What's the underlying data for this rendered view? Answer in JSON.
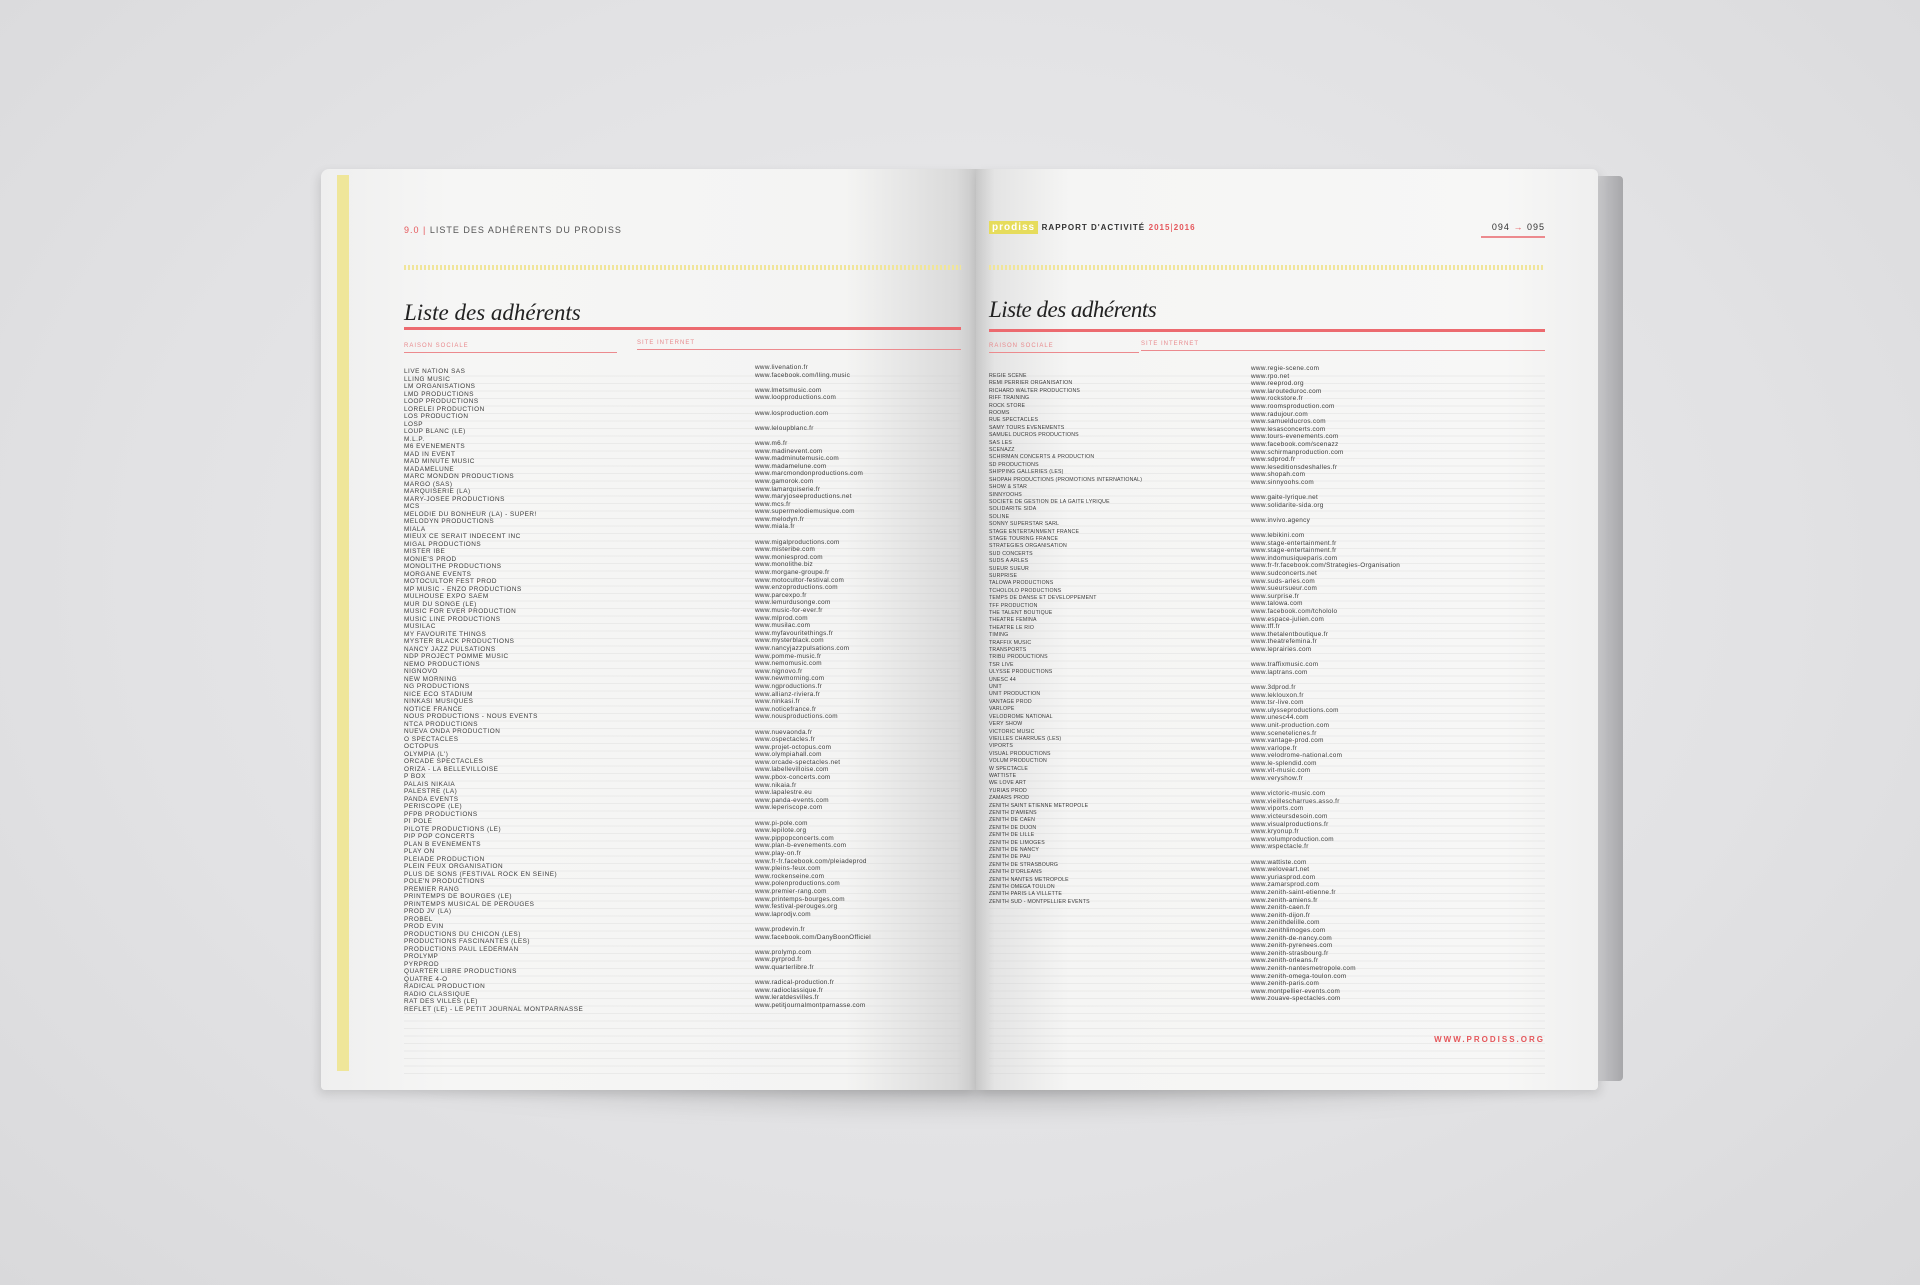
{
  "left_page": {
    "section_number": "9.0",
    "section_title": "LISTE DES ADHÉRENTS DU PRODISS",
    "heading": "Liste des adhérents",
    "columns": [
      "RAISON SOCIALE",
      "SITE INTERNET"
    ],
    "names": [
      "LIVE NATION SAS",
      "LLING MUSIC",
      "LM ORGANISATIONS",
      "LMD PRODUCTIONS",
      "LOOP PRODUCTIONS",
      "LORELEI PRODUCTION",
      "LOS PRODUCTION",
      "LOSP",
      "LOUP BLANC (LE)",
      "M.L.P.",
      "M6 EVENEMENTS",
      "MAD IN EVENT",
      "MAD MINUTE MUSIC",
      "MADAMELUNE",
      "MARC MONDON PRODUCTIONS",
      "MARGO (SAS)",
      "MARQUISERIE (LA)",
      "MARY-JOSEE PRODUCTIONS",
      "MCS",
      "MELODIE DU BONHEUR (LA) - SUPER!",
      "MELODYN PRODUCTIONS",
      "MIALA",
      "MIEUX CE SERAIT INDECENT INC",
      "MIGAL PRODUCTIONS",
      "MISTER IBE",
      "MONIE'S PROD",
      "MONOLITHE PRODUCTIONS",
      "MORGANE EVENTS",
      "MOTOCULTOR FEST PROD",
      "MP MUSIC - ENZO PRODUCTIONS",
      "MULHOUSE EXPO SAEM",
      "MUR DU SONGE (LE)",
      "MUSIC FOR EVER PRODUCTION",
      "MUSIC LINE PRODUCTIONS",
      "MUSILAC",
      "MY FAVOURITE THINGS",
      "MYSTER BLACK PRODUCTIONS",
      "NANCY JAZZ PULSATIONS",
      "NDP PROJECT POMME MUSIC",
      "NEMO PRODUCTIONS",
      "NIGNOVO",
      "NEW MORNING",
      "NG PRODUCTIONS",
      "NICE ECO STADIUM",
      "NINKASI MUSIQUES",
      "NOTICE FRANCE",
      "NOUS PRODUCTIONS - NOUS EVENTS",
      "NTCA PRODUCTIONS",
      "NUEVA ONDA PRODUCTION",
      "O SPECTACLES",
      "OCTOPUS",
      "OLYMPIA (L')",
      "ORCADE SPECTACLES",
      "ORIZA - LA BELLEVILLOISE",
      "P BOX",
      "PALAIS NIKAIA",
      "PALESTRE (LA)",
      "PANDA EVENTS",
      "PERISCOPE (LE)",
      "PFPB PRODUCTIONS",
      "PI POLE",
      "PILOTE PRODUCTIONS (LE)",
      "PIP POP CONCERTS",
      "PLAN B EVENEMENTS",
      "PLAY ON",
      "PLEIADE PRODUCTION",
      "PLEIN FEUX ORGANISATION",
      "PLUS DE SONS (FESTIVAL ROCK EN SEINE)",
      "POLE'N PRODUCTIONS",
      "PREMIER RANG",
      "PRINTEMPS DE BOURGES (LE)",
      "PRINTEMPS MUSICAL DE PEROUGES",
      "PROD JV (LA)",
      "PROBEL",
      "PROD EVIN",
      "PRODUCTIONS DU CHICON (LES)",
      "PRODUCTIONS FASCINANTES (LES)",
      "PRODUCTIONS PAUL LEDERMAN",
      "PROLYMP",
      "PYRPROD",
      "QUARTER LIBRE PRODUCTIONS",
      "QUATRE 4-O",
      "RADICAL PRODUCTION",
      "RADIO CLASSIQUE",
      "RAT DES VILLES (LE)",
      "REFLET (LE) - LE PETIT JOURNAL MONTPARNASSE"
    ],
    "site_blocks": [
      [
        "www.livenation.fr",
        "www.facebook.com/lling.music"
      ],
      [
        "www.lmetsmusic.com",
        "www.loopproductions.com"
      ],
      [
        "www.losproduction.com"
      ],
      [
        "www.leloupblanc.fr"
      ],
      [
        "www.m6.fr",
        "www.madinevent.com",
        "www.madminutemusic.com",
        "www.madamelune.com",
        "www.marcmondonproductions.com",
        "www.gamorok.com",
        "www.lamarquiserie.fr",
        "www.maryjoseeproductions.net",
        "www.mcs.fr",
        "www.supermelodiemusique.com",
        "www.melodyn.fr",
        "www.miala.fr"
      ],
      [
        "www.migalproductions.com",
        "www.misteribe.com",
        "www.moniesprod.com",
        "www.monolithe.biz",
        "www.morgane-groupe.fr",
        "www.motocultor-festival.com",
        "www.enzoproductions.com",
        "www.parcexpo.fr",
        "www.lemurdusonge.com",
        "www.music-for-ever.fr",
        "www.mlprod.com",
        "www.musilac.com",
        "www.myfavouritethings.fr",
        "www.mysterblack.com",
        "www.nancyjazzpulsations.com",
        "www.pomme-music.fr",
        "www.nemomusic.com",
        "www.nignovo.fr",
        "www.newmorning.com",
        "www.ngproductions.fr",
        "www.allianz-riviera.fr",
        "www.ninkasi.fr",
        "www.noticefrance.fr",
        "www.nousproductions.com"
      ],
      [
        "www.nuevaonda.fr",
        "www.ospectacles.fr",
        "www.projet-octopus.com",
        "www.olympiahall.com",
        "www.orcade-spectacles.net",
        "www.labellevilloise.com",
        "www.pbox-concerts.com",
        "www.nikaia.fr",
        "www.lapalestre.eu",
        "www.panda-events.com",
        "www.leperiscope.com"
      ],
      [
        "www.pi-pole.com",
        "www.lepilote.org",
        "www.pippopconcerts.com",
        "www.plan-b-evenements.com",
        "www.play-on.fr",
        "www.fr-fr.facebook.com/pleiadeprod",
        "www.pleins-feux.com",
        "www.rockenseine.com",
        "www.polenproductions.com",
        "www.premier-rang.com",
        "www.printemps-bourges.com",
        "www.festival-perouges.org",
        "www.laprodjv.com"
      ],
      [
        "www.prodevin.fr",
        "www.facebook.com/DanyBoonOfficiel"
      ],
      [
        "www.prolymp.com",
        "www.pyrprod.fr",
        "www.quarterlibre.fr"
      ],
      [
        "www.radical-production.fr",
        "www.radioclassique.fr",
        "www.leratdesvilles.fr",
        "www.petitjournalmontparnasse.com"
      ]
    ]
  },
  "right_page": {
    "logo": "prodiss",
    "report_title": "RAPPORT D'ACTIVITÉ",
    "year_start": "2015",
    "year_end": "2016",
    "page_from": "094",
    "page_arrow": "→",
    "page_to": "095",
    "heading": "Liste des adhérents",
    "columns": [
      "RAISON SOCIALE",
      "SITE INTERNET"
    ],
    "names": [
      "REGIE SCENE",
      "REMI PERRIER ORGANISATION",
      "RICHARD WALTER PRODUCTIONS",
      "RIFF TRAINING",
      "ROCK STORE",
      "ROOMS",
      "RUE SPECTACLES",
      "SAMY TOURS EVENEMENTS",
      "SAMUEL DUCROS PRODUCTIONS",
      "SAS LES",
      "SCENAZZ",
      "SCHIRMAN CONCERTS & PRODUCTION",
      "SD PRODUCTIONS",
      "SHIPPING GALLERIES (LES)",
      "SHOPAH PRODUCTIONS (PROMOTIONS INTERNATIONAL)",
      "SHOW & STAR",
      "SINNYOOHS",
      "SOCIETE DE GESTION DE LA GAITE LYRIQUE",
      "SOLIDARITE SIDA",
      "SOLINE",
      "SONNY SUPERSTAR SARL",
      "STAGE ENTERTAINMENT FRANCE",
      "STAGE TOURING FRANCE",
      "STRATEGIES ORGANISATION",
      "SUD CONCERTS",
      "SUDS A ARLES",
      "SUEUR SUEUR",
      "SURPRISE",
      "TALOWA PRODUCTIONS",
      "TCHOLOLO PRODUCTIONS",
      "TEMPS DE DANSE ET DEVELOPPEMENT",
      "TFF PRODUCTION",
      "THE TALENT BOUTIQUE",
      "THEATRE FEMINA",
      "THEATRE LE RIO",
      "TIMING",
      "TRAFFIX MUSIC",
      "TRANSPORTS",
      "TRIBU PRODUCTIONS",
      "TSR LIVE",
      "ULYSSE PRODUCTIONS",
      "UNESC 44",
      "UNIT",
      "UNIT PRODUCTION",
      "VANTAGE PROD",
      "VARLOPE",
      "VELODROME NATIONAL",
      "VERY SHOW",
      "VICTORIC MUSIC",
      "VIEILLES CHARRUES (LES)",
      "VIPORTS",
      "VISUAL PRODUCTIONS",
      "VOLUM PRODUCTION",
      "W SPECTACLE",
      "WATTISTE",
      "WE LOVE ART",
      "YURIAS PROD",
      "ZAMARS PROD",
      "ZENITH SAINT ETIENNE METROPOLE",
      "ZENITH D'AMIENS",
      "ZENITH DE CAEN",
      "ZENITH DE DIJON",
      "ZENITH DE LILLE",
      "ZENITH DE LIMOGES",
      "ZENITH DE NANCY",
      "ZENITH DE PAU",
      "ZENITH DE STRASBOURG",
      "ZENITH D'ORLEANS",
      "ZENITH NANTES METROPOLE",
      "ZENITH OMEGA TOULON",
      "ZENITH PARIS LA VILLETTE",
      "ZENITH SUD - MONTPELLIER EVENTS"
    ],
    "site_blocks": [
      [
        "www.regie-scene.com",
        "www.rpo.net",
        "www.reeprod.org",
        "www.larouteduroc.com",
        "www.rockstore.fr",
        "www.roomsproduction.com",
        "www.radujour.com",
        "www.samuelducros.com",
        "www.lesasconcerts.com",
        "www.tours-evenements.com",
        "www.facebook.com/scenazz",
        "www.schirmanproduction.com",
        "www.sdprod.fr",
        "www.leseditionsdeshalles.fr",
        "www.shopah.com",
        "www.sinnyoohs.com"
      ],
      [
        "www.gaite-lyrique.net",
        "www.solidarite-sida.org"
      ],
      [
        "www.invivo.agency"
      ],
      [
        "www.lebikini.com",
        "www.stage-entertainment.fr",
        "www.stage-entertainment.fr",
        "www.indomusiqueparis.com",
        "www.fr-fr.facebook.com/Strategies-Organisation",
        "www.sudconcerts.net",
        "www.suds-arles.com",
        "www.sueursueur.com",
        "www.surprise.fr",
        "www.talowa.com",
        "www.facebook.com/tchololo",
        "www.espace-julien.com",
        "www.tff.fr",
        "www.thetalentboutique.fr",
        "www.theatrefemina.fr",
        "www.leprairies.com"
      ],
      [
        "www.traffixmusic.com",
        "www.laptrans.com"
      ],
      [
        "www.3dprod.fr",
        "www.leklouxon.fr",
        "www.tsr-live.com",
        "www.ulysseproductions.com",
        "www.unesc44.com",
        "www.unit-production.com",
        "www.scenetelicnes.fr",
        "www.vantage-prod.com",
        "www.varlope.fr",
        "www.velodrome-national.com",
        "www.le-splendid.com",
        "www.vit-music.com",
        "www.veryshow.fr"
      ],
      [
        "www.victoric-music.com",
        "www.vieillescharrues.asso.fr",
        "www.viports.com",
        "www.victeursdesoin.com",
        "www.visualproductions.fr",
        "www.kryonup.fr",
        "www.volumproduction.com",
        "www.wspectacle.fr"
      ],
      [
        "www.wattiste.com",
        "www.weloveart.net",
        "www.yuriasprod.com",
        "www.zamarsprod.com",
        "www.zenith-saint-etienne.fr",
        "www.zenith-amiens.fr",
        "www.zenith-caen.fr",
        "www.zenith-dijon.fr",
        "www.zenithdelille.com",
        "www.zenithlimoges.com",
        "www.zenith-de-nancy.com",
        "www.zenith-pyrenees.com",
        "www.zenith-strasbourg.fr",
        "www.zenith-orleans.fr",
        "www.zenith-nantesmetropole.com",
        "www.zenith-omega-toulon.com",
        "www.zenith-paris.com",
        "www.montpellier-events.com",
        "www.zouave-spectacles.com"
      ]
    ],
    "footer": "WWW.PRODISS.ORG"
  }
}
